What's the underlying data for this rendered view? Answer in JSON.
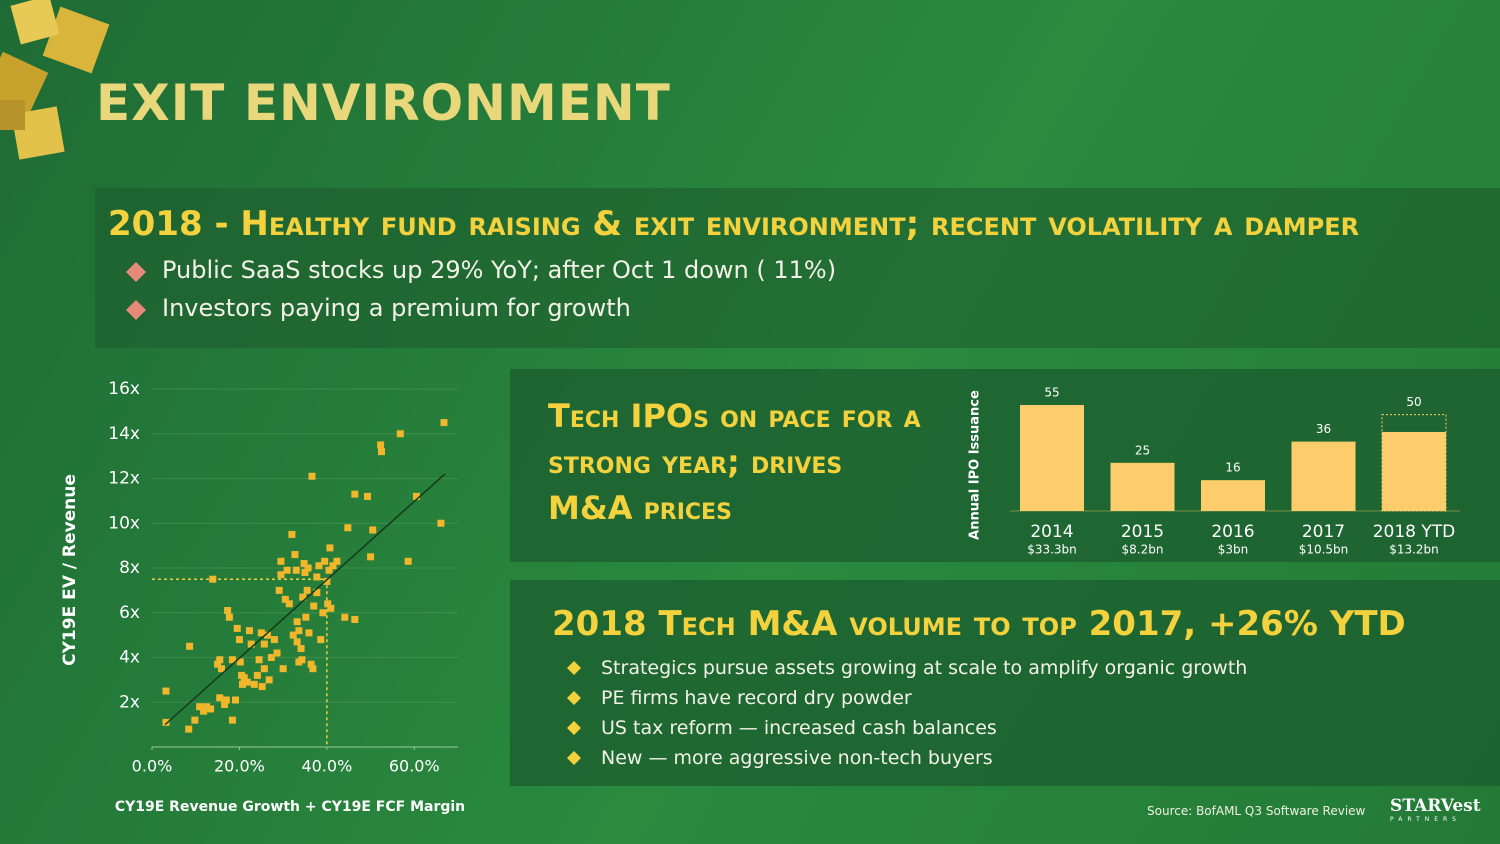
{
  "header": {
    "title": "EXIT ENVIRONMENT"
  },
  "summary": {
    "heading": "2018 - Healthy fund raising & exit environment; recent volatility a damper",
    "bullets": [
      "Public SaaS stocks up 29% YoY; after Oct 1 down ( 11%)",
      "Investors paying a premium for growth"
    ]
  },
  "chart_data": [
    {
      "type": "scatter",
      "x_label": "CY19E Revenue Growth + CY19E FCF Margin",
      "y_label": "CY19E EV / Revenue",
      "color": "#f2b62c",
      "xlim": [
        0,
        70
      ],
      "ylim": [
        0,
        16
      ],
      "xticks": [
        {
          "value": 0,
          "label": "0.0%"
        },
        {
          "value": 20,
          "label": "20.0%"
        },
        {
          "value": 40,
          "label": "40.0%"
        },
        {
          "value": 60,
          "label": "60.0%"
        }
      ],
      "yticks": [
        {
          "value": 2,
          "label": "2x"
        },
        {
          "value": 4,
          "label": "4x"
        },
        {
          "value": 6,
          "label": "6x"
        },
        {
          "value": 8,
          "label": "8x"
        },
        {
          "value": 10,
          "label": "10x"
        },
        {
          "value": 12,
          "label": "12x"
        },
        {
          "value": 14,
          "label": "14x"
        },
        {
          "value": 16,
          "label": "16x"
        }
      ],
      "grid": true,
      "trendline": {
        "x": [
          3,
          67
        ],
        "y": [
          1,
          12.2
        ]
      },
      "reference": {
        "x": 40,
        "y": 7.5
      },
      "x": [
        3.2,
        3.2,
        8.6,
        8.4,
        9.8,
        10.9,
        11.8,
        12.5,
        13.4,
        13.9,
        15.0,
        15.5,
        15.9,
        15.5,
        16.6,
        17.0,
        17.3,
        17.7,
        18.4,
        18.4,
        19.1,
        19.5,
        20.0,
        20.2,
        20.5,
        20.7,
        21.1,
        21.8,
        22.3,
        22.7,
        23.4,
        24.1,
        24.5,
        25.0,
        25.2,
        25.7,
        25.7,
        26.4,
        26.8,
        27.3,
        28.0,
        28.6,
        29.1,
        29.5,
        29.5,
        30.0,
        30.5,
        30.9,
        31.4,
        32.0,
        32.3,
        32.7,
        33.0,
        33.2,
        33.2,
        33.6,
        33.6,
        34.1,
        34.3,
        34.5,
        34.8,
        35.0,
        35.2,
        35.5,
        35.7,
        35.9,
        36.4,
        36.6,
        36.8,
        37.0,
        37.7,
        37.7,
        38.2,
        38.6,
        39.1,
        39.5,
        40.0,
        40.2,
        40.5,
        40.7,
        40.9,
        41.4,
        42.3,
        44.1,
        44.8,
        46.4,
        46.4,
        49.3,
        50.0,
        50.5,
        52.3,
        52.5,
        56.8,
        58.6,
        60.5,
        66.1,
        66.8
      ],
      "values": [
        2.5,
        1.1,
        4.5,
        0.8,
        1.2,
        1.8,
        1.6,
        1.8,
        1.7,
        7.5,
        3.7,
        3.9,
        3.5,
        2.2,
        1.9,
        2.1,
        6.1,
        5.8,
        3.9,
        1.2,
        2.1,
        5.3,
        4.8,
        3.8,
        3.2,
        2.8,
        3.1,
        2.9,
        5.2,
        4.6,
        2.8,
        3.2,
        3.9,
        5.1,
        2.7,
        4.6,
        3.5,
        5.0,
        3.0,
        4.0,
        4.8,
        4.2,
        7.0,
        8.3,
        7.7,
        3.5,
        6.6,
        7.9,
        6.4,
        9.5,
        5.0,
        8.6,
        7.9,
        5.6,
        4.7,
        3.8,
        5.2,
        4.4,
        3.9,
        6.7,
        8.2,
        7.8,
        5.8,
        7.0,
        8.0,
        5.1,
        3.7,
        12.1,
        3.5,
        6.3,
        7.6,
        6.9,
        8.1,
        4.8,
        6.0,
        8.3,
        7.4,
        6.4,
        7.9,
        8.9,
        6.2,
        8.1,
        8.3,
        5.8,
        9.8,
        5.7,
        11.3,
        11.2,
        8.5,
        9.7,
        13.5,
        13.2,
        14.0,
        8.3,
        11.2,
        10.0,
        14.5
      ]
    },
    {
      "type": "bar",
      "title": "Tech IPOs on pace for a strong year; drives M&A prices",
      "y_label": "Annual IPO Issuance",
      "color": "#fccd6a",
      "categories": [
        "2014",
        "2015",
        "2016",
        "2017",
        "2018 YTD"
      ],
      "sublabels": [
        "$33.3bn",
        "$8.2bn",
        "$3bn",
        "$10.5bn",
        "$13.2bn"
      ],
      "values": [
        55,
        25,
        16,
        36,
        50
      ],
      "ytd_actual": 41
    }
  ],
  "ma": {
    "heading": "2018 Tech M&A volume to top 2017, +26% YTD",
    "bullets": [
      "Strategics pursue assets growing at scale to amplify organic growth",
      "PE firms have record dry powder",
      "US tax reform — increased cash balances",
      "New — more aggressive non-tech buyers"
    ]
  },
  "footer": {
    "source": "Source: BofAML Q3 Software Review",
    "logo": "STARVest",
    "logo_sub": "PARTNERS"
  }
}
